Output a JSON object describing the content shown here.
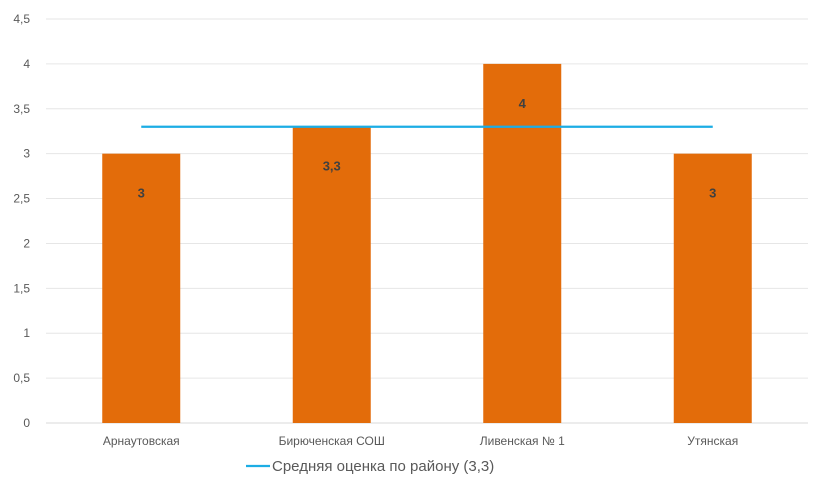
{
  "chart_data": {
    "type": "bar",
    "categories": [
      "Арнаутовская",
      "Бирюченская СОШ",
      "Ливенская  № 1",
      "Утянская"
    ],
    "values": [
      3,
      3.3,
      4,
      3
    ],
    "data_labels": [
      "3",
      "3,3",
      "4",
      "3"
    ],
    "reference_line": {
      "name": "Средняя оценка по району (3,3)",
      "value": 3.3,
      "color": "#1CADE4"
    },
    "ylim": [
      0,
      4.5
    ],
    "yticks": [
      0,
      0.5,
      1,
      1.5,
      2,
      2.5,
      3,
      3.5,
      4,
      4.5
    ],
    "ytick_labels": [
      "0",
      "0,5",
      "1",
      "1,5",
      "2",
      "2,5",
      "3",
      "3,5",
      "4",
      "4,5"
    ],
    "bar_color": "#E36C0A",
    "grid": true,
    "legend_position": "bottom"
  }
}
